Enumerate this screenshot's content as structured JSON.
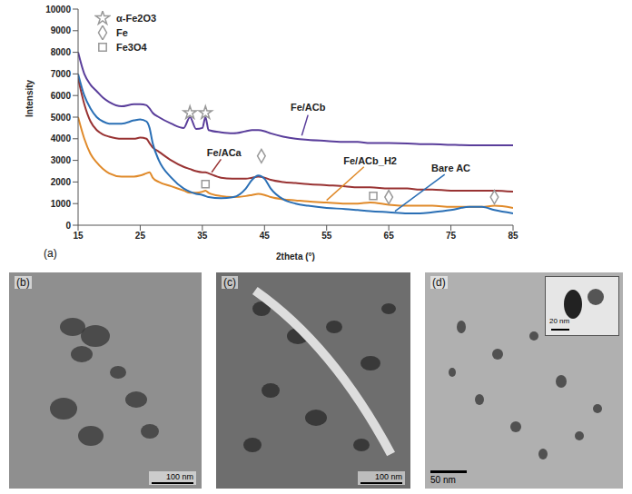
{
  "chart_data": {
    "type": "line",
    "panel_label": "(a)",
    "x_label": "2theta (°)",
    "y_label": "Intensity",
    "x": [
      15,
      16,
      17,
      18,
      19,
      20,
      22,
      24,
      25,
      26,
      26.5,
      27,
      28,
      30,
      32,
      33,
      34,
      35,
      35.5,
      36,
      38,
      40,
      42,
      43,
      44,
      45,
      46,
      48,
      50,
      52,
      55,
      58,
      60,
      62,
      65,
      68,
      70,
      72,
      75,
      78,
      80,
      82,
      85
    ],
    "xlim": [
      15,
      85
    ],
    "xticks": [
      15,
      25,
      35,
      45,
      55,
      65,
      75,
      85
    ],
    "ylim": [
      0,
      10000
    ],
    "yticks": [
      0,
      1000,
      2000,
      3000,
      4000,
      5000,
      6000,
      7000,
      8000,
      9000,
      10000
    ],
    "series": [
      {
        "name": "Fe/ACb",
        "color": "#5a3e9b",
        "values": [
          8000,
          7000,
          6500,
          6200,
          5900,
          5700,
          5500,
          5600,
          5600,
          5550,
          5400,
          5200,
          5000,
          4700,
          4500,
          5000,
          4450,
          4500,
          5000,
          4400,
          4300,
          4250,
          4350,
          4400,
          4400,
          4350,
          4250,
          4100,
          4000,
          3950,
          3900,
          3850,
          3850,
          3800,
          3800,
          3780,
          3750,
          3750,
          3720,
          3700,
          3700,
          3700,
          3700
        ]
      },
      {
        "name": "Fe/ACa",
        "color": "#993333",
        "values": [
          6800,
          5600,
          4800,
          4400,
          4200,
          4100,
          4000,
          4000,
          4050,
          4000,
          3800,
          3600,
          3400,
          3000,
          2700,
          2600,
          2500,
          2450,
          2450,
          2400,
          2200,
          2150,
          2150,
          2200,
          2250,
          2200,
          2100,
          2000,
          1950,
          1900,
          1850,
          1800,
          1750,
          1750,
          1700,
          1700,
          1650,
          1650,
          1600,
          1600,
          1600,
          1600,
          1550
        ]
      },
      {
        "name": "Fe/ACb_H2",
        "color": "#e08a2a",
        "values": [
          5000,
          4000,
          3300,
          2900,
          2600,
          2400,
          2250,
          2250,
          2300,
          2400,
          2450,
          2200,
          2000,
          1800,
          1600,
          1500,
          1500,
          1550,
          1600,
          1500,
          1350,
          1300,
          1350,
          1400,
          1450,
          1400,
          1300,
          1200,
          1150,
          1100,
          1050,
          1000,
          1000,
          1050,
          950,
          900,
          900,
          900,
          850,
          850,
          850,
          900,
          800
        ]
      },
      {
        "name": "Bare AC",
        "color": "#2a6fb5",
        "values": [
          7000,
          6000,
          5400,
          5000,
          4800,
          4700,
          4700,
          4850,
          4900,
          4800,
          4500,
          3800,
          3000,
          2200,
          1700,
          1550,
          1450,
          1400,
          1350,
          1300,
          1250,
          1300,
          1700,
          2100,
          2300,
          2150,
          1700,
          1200,
          1000,
          900,
          800,
          750,
          700,
          650,
          600,
          550,
          550,
          600,
          700,
          850,
          850,
          700,
          550
        ]
      }
    ],
    "markers": [
      {
        "name": "α-Fe2O3",
        "marker": "star",
        "color": "#999999",
        "x": [
          33,
          35.5
        ],
        "y": [
          5200,
          5200
        ]
      },
      {
        "name": "Fe",
        "marker": "diamond",
        "color": "#999999",
        "x": [
          44.5,
          65,
          82
        ],
        "y": [
          3200,
          1300,
          1300
        ]
      },
      {
        "name": "Fe3O4",
        "marker": "square",
        "color": "#999999",
        "x": [
          35.5,
          62.5
        ],
        "y": [
          1900,
          1350
        ]
      }
    ],
    "legend": "top-left"
  },
  "images": [
    {
      "panel_label": "(b)",
      "scale_bar": "100 nm"
    },
    {
      "panel_label": "(c)",
      "scale_bar": "100 nm"
    },
    {
      "panel_label": "(d)",
      "scale_bar": "50 nm",
      "inset_scale_bar": "20 nm"
    }
  ]
}
